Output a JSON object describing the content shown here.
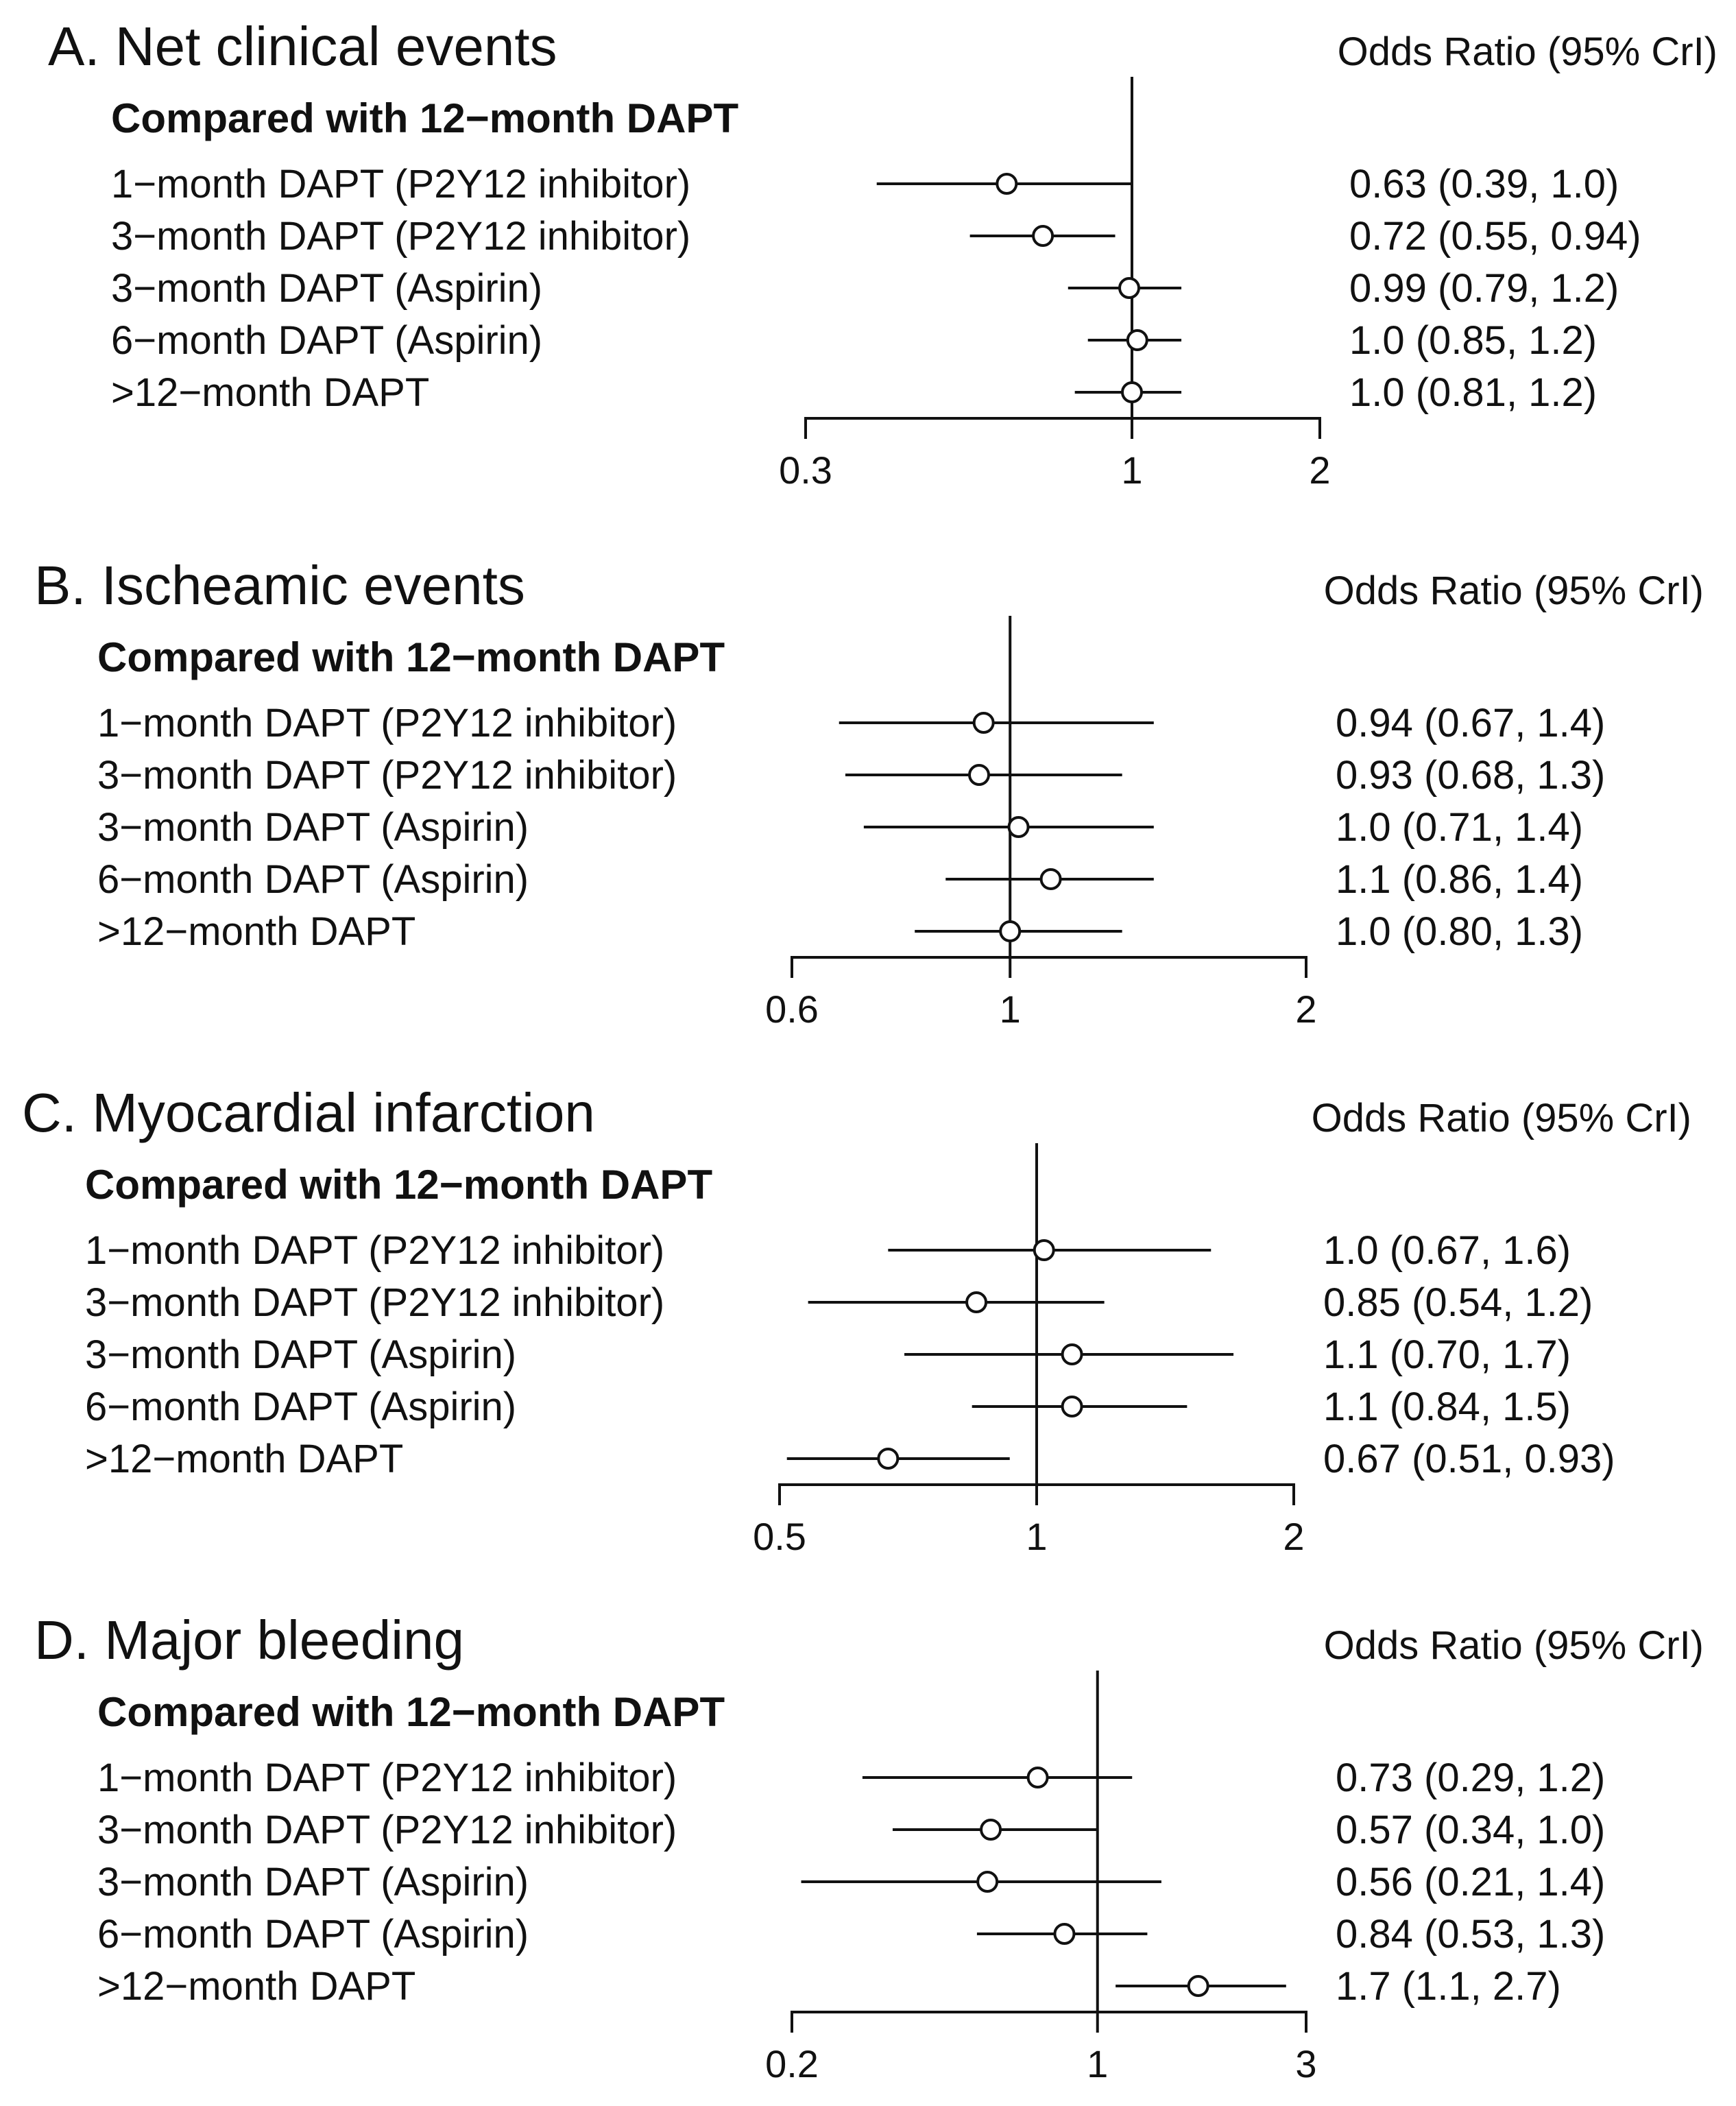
{
  "chart_data": [
    {
      "type": "forest",
      "title": "A. Net clinical events",
      "subtitle": "Compared with 12−month DAPT",
      "column_header": "Odds Ratio (95% CrI)",
      "scale": "log",
      "xlim": [
        0.3,
        2
      ],
      "xticks": [
        0.3,
        1,
        2
      ],
      "xtick_labels": [
        "0.3",
        "1",
        "2"
      ],
      "reference_value": 1,
      "rows": [
        {
          "label": "1−month DAPT (P2Y12 inhibitor)",
          "estimate": 0.63,
          "lower": 0.39,
          "upper": 1.0,
          "text": "0.63 (0.39, 1.0)"
        },
        {
          "label": "3−month DAPT (P2Y12 inhibitor)",
          "estimate": 0.72,
          "lower": 0.55,
          "upper": 0.94,
          "text": "0.72 (0.55, 0.94)"
        },
        {
          "label": "3−month DAPT (Aspirin)",
          "estimate": 0.99,
          "lower": 0.79,
          "upper": 1.2,
          "text": "0.99 (0.79, 1.2)"
        },
        {
          "label": "6−month DAPT (Aspirin)",
          "estimate": 1.02,
          "lower": 0.85,
          "upper": 1.2,
          "text": "1.0 (0.85, 1.2)"
        },
        {
          "label": ">12−month DAPT",
          "estimate": 1.0,
          "lower": 0.81,
          "upper": 1.2,
          "text": "1.0 (0.81, 1.2)"
        }
      ]
    },
    {
      "type": "forest",
      "title": "B. Ischeamic events",
      "subtitle": "Compared with 12−month DAPT",
      "column_header": "Odds Ratio (95% CrI)",
      "scale": "log",
      "xlim": [
        0.6,
        2
      ],
      "xticks": [
        0.6,
        1,
        2
      ],
      "xtick_labels": [
        "0.6",
        "1",
        "2"
      ],
      "reference_value": 1,
      "rows": [
        {
          "label": "1−month DAPT (P2Y12 inhibitor)",
          "estimate": 0.94,
          "lower": 0.67,
          "upper": 1.4,
          "text": "0.94 (0.67, 1.4)"
        },
        {
          "label": "3−month DAPT (P2Y12 inhibitor)",
          "estimate": 0.93,
          "lower": 0.68,
          "upper": 1.3,
          "text": "0.93 (0.68, 1.3)"
        },
        {
          "label": "3−month DAPT (Aspirin)",
          "estimate": 1.02,
          "lower": 0.71,
          "upper": 1.4,
          "text": "1.0 (0.71, 1.4)"
        },
        {
          "label": "6−month DAPT (Aspirin)",
          "estimate": 1.1,
          "lower": 0.86,
          "upper": 1.4,
          "text": "1.1 (0.86, 1.4)"
        },
        {
          "label": ">12−month DAPT",
          "estimate": 1.0,
          "lower": 0.8,
          "upper": 1.3,
          "text": "1.0 (0.80, 1.3)"
        }
      ]
    },
    {
      "type": "forest",
      "title": "C. Myocardial infarction",
      "subtitle": "Compared with 12−month DAPT",
      "column_header": "Odds Ratio (95% CrI)",
      "scale": "log",
      "xlim": [
        0.5,
        2
      ],
      "xticks": [
        0.5,
        1,
        2
      ],
      "xtick_labels": [
        "0.5",
        "1",
        "2"
      ],
      "reference_value": 1,
      "rows": [
        {
          "label": "1−month DAPT (P2Y12 inhibitor)",
          "estimate": 1.02,
          "lower": 0.67,
          "upper": 1.6,
          "text": "1.0 (0.67, 1.6)"
        },
        {
          "label": "3−month DAPT (P2Y12 inhibitor)",
          "estimate": 0.85,
          "lower": 0.54,
          "upper": 1.2,
          "text": "0.85 (0.54, 1.2)"
        },
        {
          "label": "3−month DAPT (Aspirin)",
          "estimate": 1.1,
          "lower": 0.7,
          "upper": 1.7,
          "text": "1.1 (0.70, 1.7)"
        },
        {
          "label": "6−month DAPT (Aspirin)",
          "estimate": 1.1,
          "lower": 0.84,
          "upper": 1.5,
          "text": "1.1 (0.84, 1.5)"
        },
        {
          "label": ">12−month DAPT",
          "estimate": 0.67,
          "lower": 0.51,
          "upper": 0.93,
          "text": "0.67 (0.51, 0.93)"
        }
      ]
    },
    {
      "type": "forest",
      "title": "D. Major bleeding",
      "subtitle": "Compared with 12−month DAPT",
      "column_header": "Odds Ratio (95% CrI)",
      "scale": "log",
      "xlim": [
        0.2,
        3
      ],
      "xticks": [
        0.2,
        1,
        3
      ],
      "xtick_labels": [
        "0.2",
        "1",
        "3"
      ],
      "reference_value": 1,
      "rows": [
        {
          "label": "1−month DAPT (P2Y12 inhibitor)",
          "estimate": 0.73,
          "lower": 0.29,
          "upper": 1.2,
          "text": "0.73 (0.29, 1.2)"
        },
        {
          "label": "3−month DAPT (P2Y12 inhibitor)",
          "estimate": 0.57,
          "lower": 0.34,
          "upper": 1.0,
          "text": "0.57 (0.34, 1.0)"
        },
        {
          "label": "3−month DAPT (Aspirin)",
          "estimate": 0.56,
          "lower": 0.21,
          "upper": 1.4,
          "text": "0.56 (0.21, 1.4)"
        },
        {
          "label": "6−month DAPT (Aspirin)",
          "estimate": 0.84,
          "lower": 0.53,
          "upper": 1.3,
          "text": "0.84 (0.53, 1.3)"
        },
        {
          "label": ">12−month DAPT",
          "estimate": 1.7,
          "lower": 1.1,
          "upper": 2.7,
          "text": "1.7 (1.1, 2.7)"
        }
      ]
    }
  ]
}
